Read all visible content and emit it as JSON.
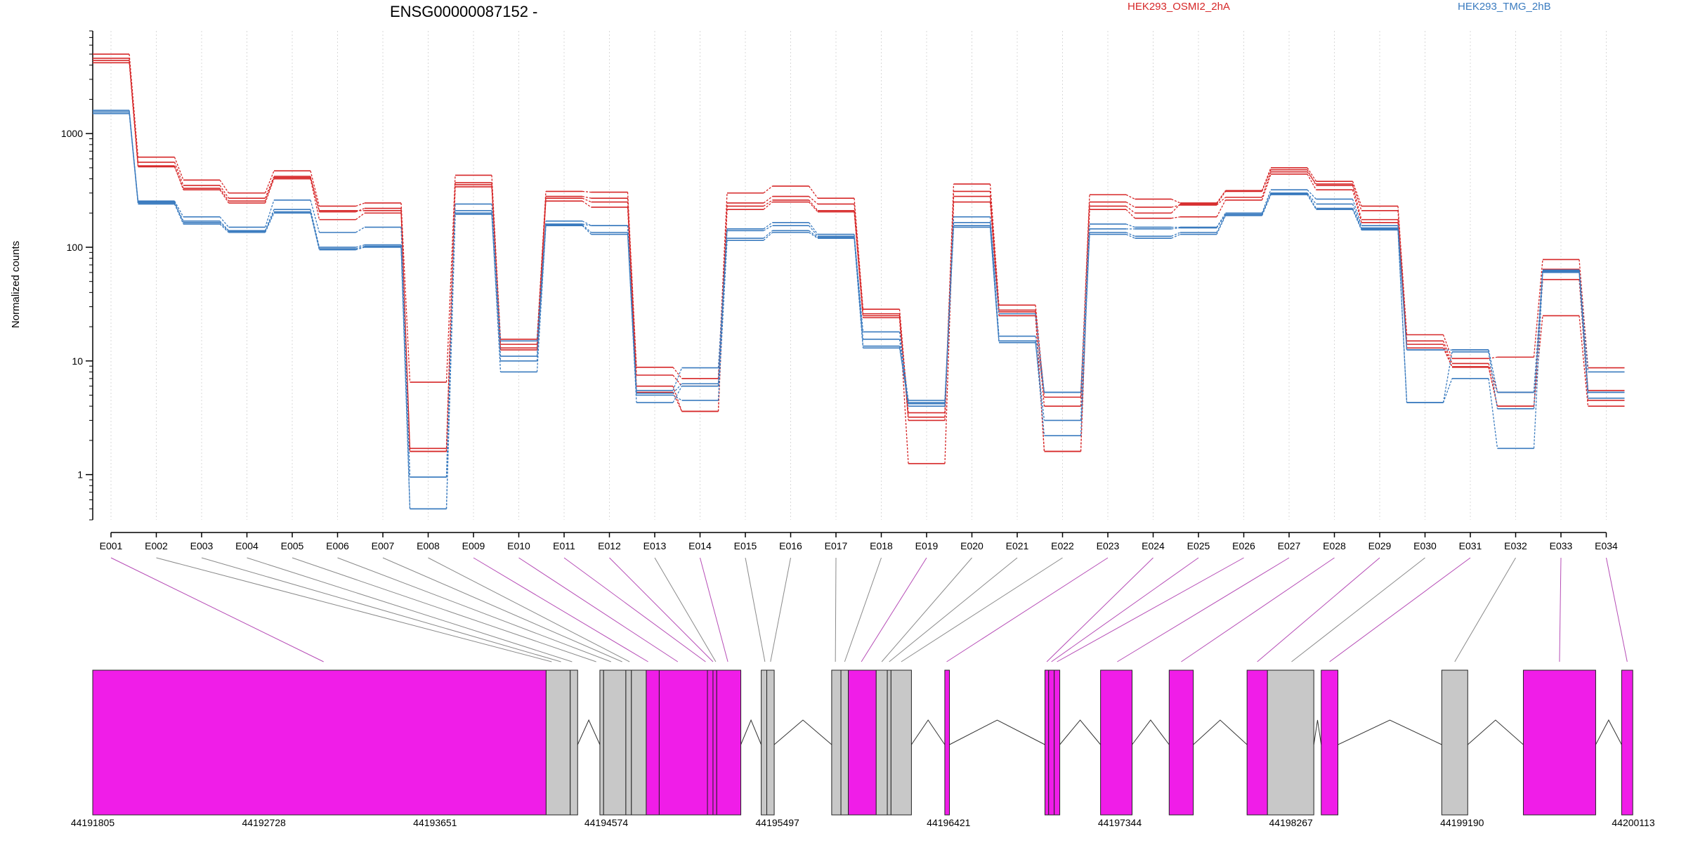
{
  "chart_data": {
    "type": "line",
    "title": "ENSG00000087152 -",
    "ylabel": "Normalized counts",
    "xlabel": "",
    "yscale": "log",
    "ylim": [
      0.4,
      8000
    ],
    "yticks": [
      {
        "value": 1,
        "label": "1"
      },
      {
        "value": 10,
        "label": "10"
      },
      {
        "value": 100,
        "label": "100"
      },
      {
        "value": 1000,
        "label": "1000"
      }
    ],
    "grid": "vertical dotted",
    "categories": [
      "E001",
      "E002",
      "E003",
      "E004",
      "E005",
      "E006",
      "E007",
      "E008",
      "E009",
      "E010",
      "E011",
      "E012",
      "E013",
      "E014",
      "E015",
      "E016",
      "E017",
      "E018",
      "E019",
      "E020",
      "E021",
      "E022",
      "E023",
      "E024",
      "E025",
      "E026",
      "E027",
      "E028",
      "E029",
      "E030",
      "E031",
      "E032",
      "E033",
      "E034"
    ],
    "legend": [
      {
        "name": "HEK293_OSMI2_2hA",
        "color": "#d62728"
      },
      {
        "name": "HEK293_TMG_2hB",
        "color": "#3a7bbf"
      }
    ],
    "series": [
      {
        "group": 0,
        "values": [
          5000,
          620,
          390,
          300,
          470,
          230,
          245,
          6.5,
          430,
          15.5,
          310,
          305,
          8.8,
          7.0,
          300,
          345,
          270,
          28.5,
          3.5,
          360,
          31,
          4.8,
          290,
          265,
          245,
          315,
          500,
          380,
          230,
          17,
          10.5,
          10.8,
          78,
          8.7
        ]
      },
      {
        "group": 0,
        "values": [
          4600,
          560,
          350,
          270,
          420,
          205,
          220,
          1.6,
          370,
          14,
          280,
          270,
          7.5,
          6.0,
          245,
          280,
          240,
          26,
          3.0,
          310,
          28,
          4.0,
          250,
          225,
          235,
          275,
          460,
          360,
          210,
          15,
          9.5,
          5.3,
          64,
          5.5
        ]
      },
      {
        "group": 0,
        "values": [
          4400,
          520,
          320,
          245,
          400,
          175,
          200,
          1.6,
          340,
          12.5,
          255,
          225,
          6.0,
          3.6,
          215,
          250,
          205,
          24,
          1.25,
          250,
          25,
          1.6,
          215,
          180,
          185,
          260,
          440,
          320,
          165,
          14,
          8.8,
          4.0,
          52,
          4.5
        ]
      },
      {
        "group": 0,
        "values": [
          4200,
          510,
          330,
          255,
          410,
          210,
          210,
          1.7,
          355,
          13,
          270,
          250,
          5.3,
          3.6,
          230,
          260,
          210,
          25,
          3.2,
          280,
          27,
          1.6,
          230,
          200,
          240,
          310,
          480,
          350,
          175,
          13,
          8.9,
          4.0,
          25,
          4.0
        ]
      },
      {
        "group": 1,
        "values": [
          1600,
          255,
          185,
          150,
          260,
          135,
          150,
          0.95,
          240,
          15,
          170,
          155,
          5.5,
          8.7,
          145,
          165,
          130,
          18,
          4.5,
          185,
          16.5,
          5.3,
          160,
          150,
          150,
          200,
          320,
          265,
          155,
          12.5,
          12.5,
          5.3,
          63,
          8.0
        ]
      },
      {
        "group": 1,
        "values": [
          1550,
          245,
          170,
          140,
          215,
          100,
          105,
          0.95,
          210,
          11,
          160,
          155,
          5.2,
          6.3,
          140,
          155,
          125,
          15.5,
          4.2,
          165,
          26,
          5.3,
          145,
          145,
          148,
          195,
          300,
          240,
          148,
          12.5,
          12.5,
          5.3,
          62,
          5.3
        ]
      },
      {
        "group": 1,
        "values": [
          1500,
          240,
          160,
          135,
          200,
          95,
          100,
          0.5,
          195,
          10,
          155,
          130,
          5.0,
          4.5,
          115,
          135,
          120,
          13,
          4.3,
          150,
          14.5,
          3.0,
          130,
          120,
          130,
          190,
          290,
          215,
          142,
          4.3,
          7.0,
          1.7,
          60,
          4.7
        ]
      },
      {
        "group": 1,
        "values": [
          1550,
          250,
          165,
          138,
          205,
          97,
          102,
          0.5,
          200,
          8.0,
          158,
          135,
          4.3,
          6.0,
          120,
          140,
          122,
          13.5,
          4.0,
          155,
          15,
          2.2,
          135,
          125,
          135,
          192,
          295,
          220,
          145,
          4.3,
          12.0,
          3.8,
          61,
          5.3
        ]
      }
    ],
    "genomic_axis": {
      "tick_labels": [
        "44191805",
        "44192728",
        "44193651",
        "44194574",
        "44195497",
        "44196421",
        "44197344",
        "44198267",
        "44199190",
        "44200113"
      ],
      "start": 44191805,
      "end": 44200113
    },
    "gene_model": {
      "feature_colors": {
        "significant": "#f01de8",
        "other": "#c8c8c8"
      },
      "segments": [
        {
          "start": 44191805,
          "end": 44194250,
          "type": "significant"
        },
        {
          "start": 44194250,
          "end": 44194380,
          "type": "other"
        },
        {
          "start": 44194380,
          "end": 44194420,
          "type": "other"
        },
        {
          "start": 44194540,
          "end": 44194560,
          "type": "other"
        },
        {
          "start": 44194560,
          "end": 44194680,
          "type": "other"
        },
        {
          "start": 44194680,
          "end": 44194710,
          "type": "other"
        },
        {
          "start": 44194710,
          "end": 44194790,
          "type": "other"
        },
        {
          "start": 44194790,
          "end": 44194860,
          "type": "significant"
        },
        {
          "start": 44194860,
          "end": 44195120,
          "type": "significant"
        },
        {
          "start": 44195120,
          "end": 44195150,
          "type": "significant"
        },
        {
          "start": 44195150,
          "end": 44195170,
          "type": "significant"
        },
        {
          "start": 44195170,
          "end": 44195300,
          "type": "significant"
        },
        {
          "start": 44195410,
          "end": 44195440,
          "type": "other"
        },
        {
          "start": 44195440,
          "end": 44195480,
          "type": "other"
        },
        {
          "start": 44195790,
          "end": 44195840,
          "type": "other"
        },
        {
          "start": 44195840,
          "end": 44195880,
          "type": "other"
        },
        {
          "start": 44195880,
          "end": 44196030,
          "type": "significant"
        },
        {
          "start": 44196030,
          "end": 44196090,
          "type": "other"
        },
        {
          "start": 44196090,
          "end": 44196110,
          "type": "other"
        },
        {
          "start": 44196110,
          "end": 44196220,
          "type": "other"
        },
        {
          "start": 44196400,
          "end": 44196425,
          "type": "significant"
        },
        {
          "start": 44196940,
          "end": 44196960,
          "type": "significant"
        },
        {
          "start": 44196960,
          "end": 44196990,
          "type": "significant"
        },
        {
          "start": 44196990,
          "end": 44197020,
          "type": "significant"
        },
        {
          "start": 44197240,
          "end": 44197410,
          "type": "significant"
        },
        {
          "start": 44197610,
          "end": 44197740,
          "type": "significant"
        },
        {
          "start": 44198030,
          "end": 44198140,
          "type": "significant"
        },
        {
          "start": 44198140,
          "end": 44198390,
          "type": "other"
        },
        {
          "start": 44198430,
          "end": 44198520,
          "type": "significant"
        },
        {
          "start": 44199080,
          "end": 44199220,
          "type": "other"
        },
        {
          "start": 44199520,
          "end": 44199910,
          "type": "significant"
        },
        {
          "start": 44200050,
          "end": 44200110,
          "type": "significant"
        }
      ],
      "connections": [
        {
          "exon": "E001",
          "pos": 44193050,
          "type": "significant"
        },
        {
          "exon": "E002",
          "pos": 44194280,
          "type": "other"
        },
        {
          "exon": "E003",
          "pos": 44194330,
          "type": "other"
        },
        {
          "exon": "E004",
          "pos": 44194390,
          "type": "other"
        },
        {
          "exon": "E005",
          "pos": 44194520,
          "type": "other"
        },
        {
          "exon": "E006",
          "pos": 44194600,
          "type": "other"
        },
        {
          "exon": "E007",
          "pos": 44194660,
          "type": "other"
        },
        {
          "exon": "E008",
          "pos": 44194700,
          "type": "other"
        },
        {
          "exon": "E009",
          "pos": 44194800,
          "type": "significant"
        },
        {
          "exon": "E010",
          "pos": 44194960,
          "type": "significant"
        },
        {
          "exon": "E011",
          "pos": 44195110,
          "type": "significant"
        },
        {
          "exon": "E012",
          "pos": 44195150,
          "type": "significant"
        },
        {
          "exon": "E013",
          "pos": 44195165,
          "type": "other"
        },
        {
          "exon": "E014",
          "pos": 44195230,
          "type": "significant"
        },
        {
          "exon": "E015",
          "pos": 44195430,
          "type": "other"
        },
        {
          "exon": "E016",
          "pos": 44195460,
          "type": "other"
        },
        {
          "exon": "E017",
          "pos": 44195810,
          "type": "other"
        },
        {
          "exon": "E018",
          "pos": 44195860,
          "type": "other"
        },
        {
          "exon": "E019",
          "pos": 44195950,
          "type": "significant"
        },
        {
          "exon": "E020",
          "pos": 44196060,
          "type": "other"
        },
        {
          "exon": "E021",
          "pos": 44196100,
          "type": "other"
        },
        {
          "exon": "E022",
          "pos": 44196165,
          "type": "other"
        },
        {
          "exon": "E023",
          "pos": 44196410,
          "type": "significant"
        },
        {
          "exon": "E024",
          "pos": 44196950,
          "type": "significant"
        },
        {
          "exon": "E025",
          "pos": 44196975,
          "type": "significant"
        },
        {
          "exon": "E026",
          "pos": 44197005,
          "type": "significant"
        },
        {
          "exon": "E027",
          "pos": 44197330,
          "type": "significant"
        },
        {
          "exon": "E028",
          "pos": 44197675,
          "type": "significant"
        },
        {
          "exon": "E029",
          "pos": 44198085,
          "type": "significant"
        },
        {
          "exon": "E030",
          "pos": 44198270,
          "type": "other"
        },
        {
          "exon": "E031",
          "pos": 44198475,
          "type": "significant"
        },
        {
          "exon": "E032",
          "pos": 44199150,
          "type": "other"
        },
        {
          "exon": "E033",
          "pos": 44199715,
          "type": "significant"
        },
        {
          "exon": "E034",
          "pos": 44200080,
          "type": "significant"
        }
      ]
    }
  }
}
